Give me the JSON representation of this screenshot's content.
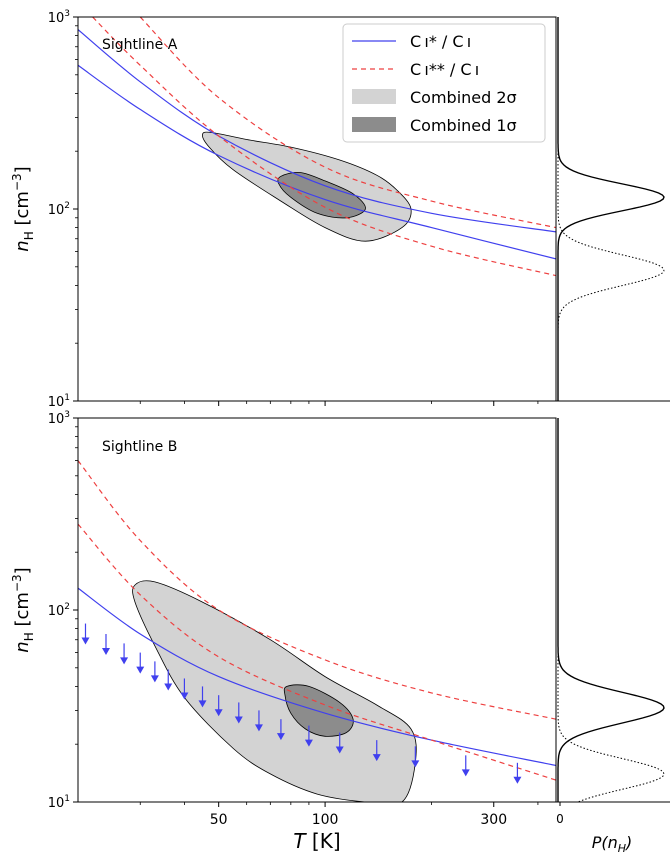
{
  "figure": {
    "legend": [
      {
        "key": "ci_ratio",
        "label": "C ı* / C ı",
        "style": "solid",
        "color": "#4040ee"
      },
      {
        "key": "cii_ratio",
        "label": "C ı** / C ı",
        "style": "dashed",
        "color": "#ee4040"
      },
      {
        "key": "comb2",
        "label": "Combined 2σ",
        "style": "fill",
        "color": "#d3d3d3"
      },
      {
        "key": "comb1",
        "label": "Combined 1σ",
        "style": "fill",
        "color": "#8c8c8c"
      }
    ],
    "x_label_math": "T",
    "x_label_unit": "[K]",
    "y_label_math": "n",
    "y_label_sub": "H",
    "y_label_unit_base": "[cm",
    "y_label_unit_sup": "−3",
    "y_label_unit_close": "]",
    "side_x_label_math": "P(n",
    "side_x_label_sub": "H",
    "side_x_label_close": ")",
    "side_x_tick": "0",
    "y_tick_base": "10",
    "y_ticks_exp": [
      "1",
      "2",
      "3"
    ],
    "x_tick_labels": [
      "50",
      "100",
      "300"
    ]
  },
  "chart_data": [
    {
      "type": "line",
      "panel": "Sightline A",
      "annotation": "Sightline A",
      "x_scale": "log",
      "y_scale": "log",
      "xlim": [
        20,
        450
      ],
      "ylim": [
        10,
        1000
      ],
      "x_ticks": [
        50,
        100,
        300
      ],
      "y_ticks": [
        10,
        100,
        1000
      ],
      "series": [
        {
          "name": "C ı* / C ı",
          "style": "solid",
          "color": "#4040ee",
          "x": [
            20,
            30,
            50,
            100,
            200,
            450
          ],
          "y": [
            560,
            330,
            190,
            112,
            80,
            55
          ]
        },
        {
          "name": "C ı* / C ı",
          "style": "solid",
          "color": "#4040ee",
          "x": [
            20,
            30,
            50,
            100,
            200,
            450
          ],
          "y": [
            860,
            460,
            240,
            132,
            95,
            76
          ]
        },
        {
          "name": "C ı** / C ı",
          "style": "dashed",
          "color": "#ee4040",
          "x": [
            22,
            30,
            50,
            100,
            200,
            450
          ],
          "y": [
            1000,
            560,
            240,
            102,
            64,
            45
          ]
        },
        {
          "name": "C ı** / C ı",
          "style": "dashed",
          "color": "#ee4040",
          "x": [
            30,
            50,
            100,
            200,
            450
          ],
          "y": [
            1000,
            380,
            165,
            110,
            80
          ]
        }
      ],
      "regions": [
        {
          "name": "Combined 2σ",
          "color": "#d3d3d3",
          "x": [
            45,
            48,
            60,
            80,
            110,
            140,
            160,
            175,
            165,
            130,
            100,
            75,
            55,
            47
          ],
          "y": [
            245,
            250,
            230,
            210,
            180,
            150,
            125,
            100,
            80,
            68,
            80,
            110,
            160,
            210
          ]
        },
        {
          "name": "Combined 1σ",
          "color": "#8c8c8c",
          "x": [
            75,
            85,
            100,
            120,
            130,
            115,
            95,
            80,
            74
          ],
          "y": [
            148,
            155,
            140,
            120,
            100,
            90,
            95,
            115,
            135
          ]
        }
      ],
      "side_pdf": [
        {
          "style": "solid",
          "peak_nH": 115,
          "sigma_dex": 0.07
        },
        {
          "style": "dotted",
          "peak_nH": 48,
          "sigma_dex": 0.08
        }
      ]
    },
    {
      "type": "line",
      "panel": "Sightline B",
      "annotation": "Sightline B",
      "x_scale": "log",
      "y_scale": "log",
      "xlim": [
        20,
        450
      ],
      "ylim": [
        10,
        1000
      ],
      "x_ticks": [
        50,
        100,
        300
      ],
      "y_ticks": [
        10,
        100,
        1000
      ],
      "series": [
        {
          "name": "C ı* / C ı",
          "style": "solid",
          "color": "#4040ee",
          "x": [
            20,
            30,
            50,
            100,
            200,
            450
          ],
          "y": [
            130,
            75,
            45,
            29,
            21,
            15.5
          ]
        },
        {
          "name": "C ı** / C ı",
          "style": "dashed",
          "color": "#ee4040",
          "x": [
            20,
            30,
            50,
            100,
            200,
            450
          ],
          "y": [
            600,
            230,
            100,
            55,
            37,
            27
          ]
        },
        {
          "name": "C ı** / C ı",
          "style": "dashed",
          "color": "#ee4040",
          "x": [
            20,
            30,
            50,
            100,
            200,
            450
          ],
          "y": [
            280,
            120,
            57,
            32,
            21,
            13
          ]
        }
      ],
      "upper_limits": {
        "x": [
          21,
          24,
          27,
          30,
          33,
          36,
          40,
          45,
          50,
          57,
          65,
          75,
          90,
          110,
          140,
          180,
          250,
          350
        ],
        "y": [
          85,
          75,
          67,
          60,
          54,
          49,
          44,
          40,
          36,
          33,
          30,
          27,
          25,
          23,
          21,
          19.5,
          17.5,
          16
        ]
      },
      "regions": [
        {
          "name": "Combined 2σ",
          "color": "#d3d3d3",
          "x": [
            29,
            33,
            45,
            70,
            100,
            140,
            175,
            180,
            165,
            130,
            95,
            70,
            55,
            40,
            33,
            29
          ],
          "y": [
            135,
            140,
            110,
            70,
            45,
            32,
            24,
            16,
            10,
            10,
            11,
            14,
            19,
            35,
            65,
            110
          ]
        },
        {
          "name": "Combined 1σ",
          "color": "#8c8c8c",
          "x": [
            78,
            90,
            110,
            120,
            115,
            100,
            88,
            80,
            77
          ],
          "y": [
            40,
            40,
            33,
            27,
            23,
            22,
            24,
            29,
            36
          ]
        }
      ],
      "side_pdf": [
        {
          "style": "solid",
          "peak_nH": 31,
          "sigma_dex": 0.08
        },
        {
          "style": "dotted",
          "peak_nH": 14,
          "sigma_dex": 0.08
        }
      ]
    }
  ]
}
